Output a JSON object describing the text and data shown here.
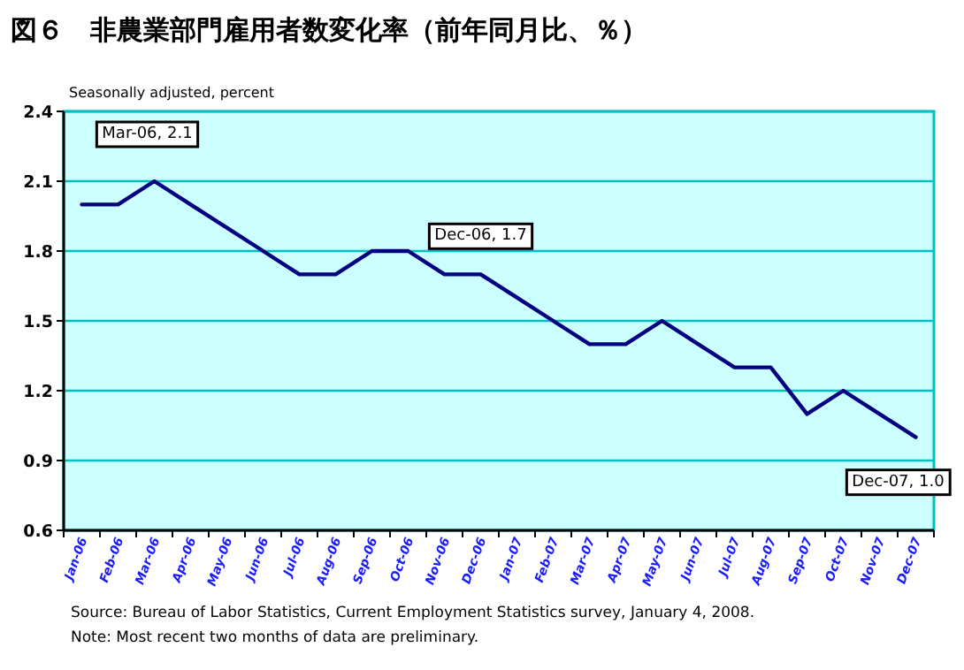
{
  "chart_data": {
    "type": "line",
    "title": "図６　非農業部門雇用者数変化率（前年同月比、％）",
    "ylabel": "Seasonally adjusted, percent",
    "categories": [
      "Jan-06",
      "Feb-06",
      "Mar-06",
      "Apr-06",
      "May-06",
      "Jun-06",
      "Jul-06",
      "Aug-06",
      "Sep-06",
      "Oct-06",
      "Nov-06",
      "Dec-06",
      "Jan-07",
      "Feb-07",
      "Mar-07",
      "Apr-07",
      "May-07",
      "Jun-07",
      "Jul-07",
      "Aug-07",
      "Sep-07",
      "Oct-07",
      "Nov-07",
      "Dec-07"
    ],
    "series": [
      {
        "color": "#000080",
        "values": [
          2.0,
          2.0,
          2.1,
          2.0,
          1.9,
          1.8,
          1.7,
          1.7,
          1.8,
          1.8,
          1.7,
          1.7,
          1.6,
          1.5,
          1.4,
          1.4,
          1.5,
          1.4,
          1.3,
          1.3,
          1.1,
          1.2,
          1.1,
          1.0
        ]
      }
    ],
    "ylim": [
      0.6,
      2.4
    ],
    "yticks": [
      0.6,
      0.9,
      1.2,
      1.5,
      1.8,
      2.1,
      2.4
    ],
    "grid": "y",
    "annotations": [
      {
        "text": "Mar-06, 2.1",
        "x": "Mar-06",
        "y": 2.1
      },
      {
        "text": "Dec-06, 1.7",
        "x": "Dec-06",
        "y": 1.7
      },
      {
        "text": "Dec-07, 1.0",
        "x": "Dec-07",
        "y": 1.0
      },
      "Source:  Bureau of Labor Statistics, Current Employment Statistics survey, January 4, 2008.",
      "Note:  Most recent two months of data are preliminary."
    ]
  }
}
